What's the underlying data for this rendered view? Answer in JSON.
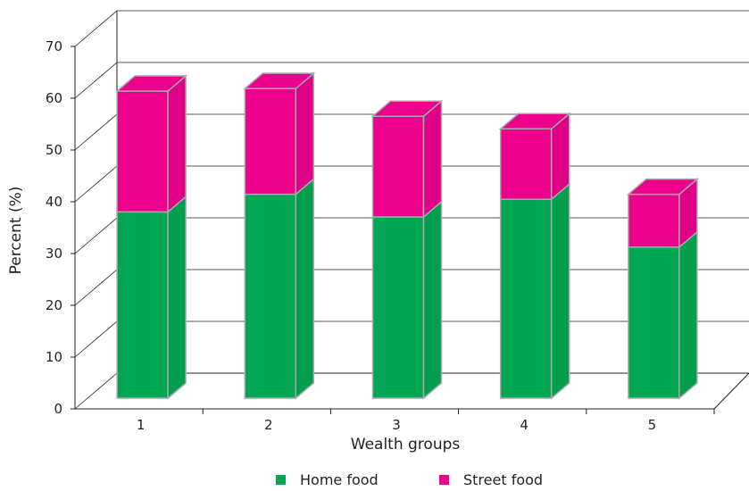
{
  "chart_data": {
    "type": "bar",
    "stacked": true,
    "three_d": true,
    "title": "",
    "xlabel": "Wealth groups",
    "ylabel": "Percent (%)",
    "categories": [
      "1",
      "2",
      "3",
      "4",
      "5"
    ],
    "series": [
      {
        "name": "Home food",
        "color": "#00a651",
        "values": [
          37,
          40.5,
          36,
          39.5,
          30
        ]
      },
      {
        "name": "Street food",
        "color": "#ec008c",
        "values": [
          24,
          21,
          20,
          14,
          10.5
        ]
      }
    ],
    "ylim": [
      0,
      70
    ],
    "yticks": [
      "0",
      "10",
      "20",
      "30",
      "40",
      "50",
      "60",
      "70"
    ],
    "grid": true,
    "legend": "bottom"
  }
}
